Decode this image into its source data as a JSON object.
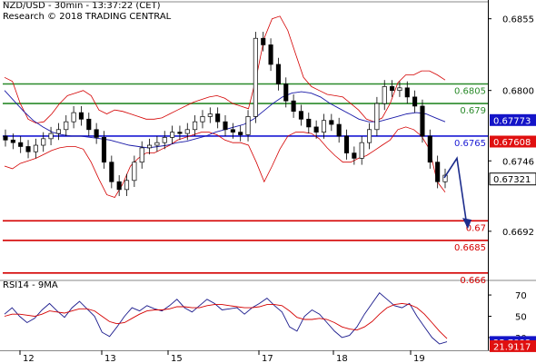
{
  "header": {
    "line1": "NZD/USD - 30min - 13:37:22 (CET)",
    "line2": "Research © 2018 TRADING CENTRAL"
  },
  "rsi_panel": {
    "title": "RSI14 - 9MA"
  },
  "colors": {
    "price": "#000000",
    "bollinger": "#d40000",
    "moving_average": "#1a1aa8",
    "resistance": "#2a8a2a",
    "pivot": "#1a1ad4",
    "support": "#d40000",
    "rsi": "#1a1a8c",
    "rsi_ma": "#d40000",
    "arrow": "#1c2c8c"
  },
  "chart_data": [
    {
      "type": "candlestick",
      "title": "NZD/USD - 30min",
      "x_tick_labels": [
        "12",
        "13",
        "15",
        "17",
        "18",
        "19"
      ],
      "ylim": [
        0.6655,
        0.6868
      ],
      "y_tick_labels": [
        "0.6855",
        "0.6800",
        "0.6746",
        "0.6692"
      ],
      "y_ticks": [
        0.6855,
        0.68,
        0.6746,
        0.6692
      ],
      "horizontal_levels": [
        {
          "label": "0.6805",
          "value": 0.6805,
          "role": "resistance"
        },
        {
          "label": "0.679",
          "value": 0.679,
          "role": "resistance"
        },
        {
          "label": "0.6765",
          "value": 0.6765,
          "role": "pivot"
        },
        {
          "label": "0.67",
          "value": 0.67,
          "role": "support"
        },
        {
          "label": "0.6685",
          "value": 0.6685,
          "role": "support"
        },
        {
          "label": "0.666",
          "value": 0.666,
          "role": "support"
        }
      ],
      "price_tags": [
        {
          "label": "0.67773",
          "value": 0.67773,
          "style": "blue"
        },
        {
          "label": "0.67608",
          "value": 0.67608,
          "style": "red"
        },
        {
          "label": "0.67321",
          "value": 0.67321,
          "style": "black"
        }
      ],
      "projection": {
        "from": 0.6733,
        "via": 0.6748,
        "to": 0.6696
      },
      "series": [
        {
          "kind": "price_close",
          "values": [
            0.6762,
            0.676,
            0.6757,
            0.6753,
            0.6758,
            0.6763,
            0.6767,
            0.677,
            0.6776,
            0.6783,
            0.6778,
            0.677,
            0.6764,
            0.6745,
            0.673,
            0.6724,
            0.6731,
            0.6745,
            0.6756,
            0.6758,
            0.676,
            0.6764,
            0.6768,
            0.6767,
            0.677,
            0.6776,
            0.678,
            0.6782,
            0.6776,
            0.677,
            0.6768,
            0.6766,
            0.678,
            0.684,
            0.6835,
            0.682,
            0.6805,
            0.6792,
            0.6784,
            0.6778,
            0.6772,
            0.6768,
            0.6777,
            0.6774,
            0.6765,
            0.6752,
            0.6748,
            0.676,
            0.677,
            0.679,
            0.6803,
            0.68,
            0.6802,
            0.6795,
            0.6788,
            0.6765,
            0.6745,
            0.673,
            0.6735
          ]
        },
        {
          "kind": "bollinger_upper",
          "values": [
            0.681,
            0.6807,
            0.679,
            0.6778,
            0.6775,
            0.6776,
            0.6782,
            0.679,
            0.6796,
            0.6798,
            0.68,
            0.6796,
            0.6785,
            0.6782,
            0.6785,
            0.6784,
            0.6782,
            0.678,
            0.6778,
            0.6778,
            0.6779,
            0.6782,
            0.6785,
            0.6788,
            0.6791,
            0.6793,
            0.6795,
            0.6796,
            0.6794,
            0.679,
            0.6788,
            0.6786,
            0.681,
            0.684,
            0.6855,
            0.6857,
            0.6846,
            0.6828,
            0.681,
            0.6803,
            0.68,
            0.6797,
            0.6796,
            0.6795,
            0.679,
            0.6785,
            0.6778,
            0.6776,
            0.6779,
            0.679,
            0.6806,
            0.6812,
            0.6812,
            0.6815,
            0.6815,
            0.6812,
            0.6808
          ]
        },
        {
          "kind": "bollinger_lower",
          "values": [
            0.6742,
            0.674,
            0.6744,
            0.6746,
            0.6748,
            0.6751,
            0.6754,
            0.6756,
            0.6757,
            0.6757,
            0.6755,
            0.6745,
            0.6732,
            0.672,
            0.6718,
            0.6728,
            0.6742,
            0.6748,
            0.6752,
            0.6752,
            0.6755,
            0.6758,
            0.6762,
            0.6764,
            0.6766,
            0.6768,
            0.6768,
            0.6766,
            0.6762,
            0.676,
            0.676,
            0.6758,
            0.6745,
            0.673,
            0.6742,
            0.6755,
            0.6765,
            0.6768,
            0.6768,
            0.6767,
            0.6763,
            0.6756,
            0.675,
            0.6745,
            0.6745,
            0.6748,
            0.675,
            0.6754,
            0.6758,
            0.6762,
            0.677,
            0.6772,
            0.677,
            0.6765,
            0.6755,
            0.673,
            0.6722
          ]
        },
        {
          "kind": "moving_average",
          "values": [
            0.68,
            0.6792,
            0.6784,
            0.6777,
            0.6772,
            0.6768,
            0.6766,
            0.6765,
            0.6765,
            0.6764,
            0.6763,
            0.6762,
            0.676,
            0.6758,
            0.6757,
            0.6756,
            0.6757,
            0.6758,
            0.676,
            0.6761,
            0.6763,
            0.6765,
            0.6768,
            0.677,
            0.6772,
            0.6774,
            0.6778,
            0.6784,
            0.679,
            0.6795,
            0.6798,
            0.6799,
            0.6798,
            0.6795,
            0.679,
            0.6786,
            0.6782,
            0.6778,
            0.6776,
            0.6776,
            0.6778,
            0.678,
            0.6782,
            0.6783,
            0.6782,
            0.6779,
            0.6776
          ]
        }
      ]
    },
    {
      "type": "line",
      "title": "RSI14 - 9MA",
      "x_tick_labels": [
        "12",
        "13",
        "15",
        "17",
        "18",
        "19"
      ],
      "ylim": [
        18,
        82
      ],
      "y_tick_labels": [
        "70",
        "50",
        "30"
      ],
      "y_ticks": [
        70,
        50,
        30
      ],
      "value_tags": [
        {
          "label": "25.7832",
          "value": 25.7832,
          "style": "blue"
        },
        {
          "label": "21.9117",
          "value": 21.9117,
          "style": "red"
        }
      ],
      "series": [
        {
          "kind": "rsi14",
          "values": [
            52,
            58,
            50,
            44,
            48,
            56,
            62,
            55,
            49,
            58,
            64,
            57,
            50,
            35,
            31,
            40,
            50,
            58,
            55,
            60,
            57,
            55,
            60,
            66,
            58,
            54,
            60,
            66,
            62,
            56,
            57,
            58,
            52,
            58,
            62,
            67,
            60,
            54,
            40,
            36,
            50,
            56,
            52,
            44,
            36,
            30,
            32,
            40,
            52,
            62,
            72,
            66,
            60,
            58,
            62,
            50,
            40,
            30,
            24,
            26
          ]
        },
        {
          "kind": "rsi_ma9",
          "values": [
            50,
            52,
            52,
            51,
            50,
            52,
            55,
            54,
            53,
            55,
            57,
            57,
            55,
            50,
            45,
            43,
            44,
            48,
            52,
            55,
            56,
            56,
            57,
            59,
            59,
            58,
            58,
            60,
            61,
            61,
            60,
            59,
            58,
            58,
            59,
            61,
            61,
            60,
            55,
            49,
            47,
            47,
            48,
            47,
            44,
            40,
            38,
            37,
            40,
            45,
            52,
            58,
            61,
            62,
            61,
            58,
            52,
            44,
            36,
            29
          ]
        }
      ]
    }
  ]
}
